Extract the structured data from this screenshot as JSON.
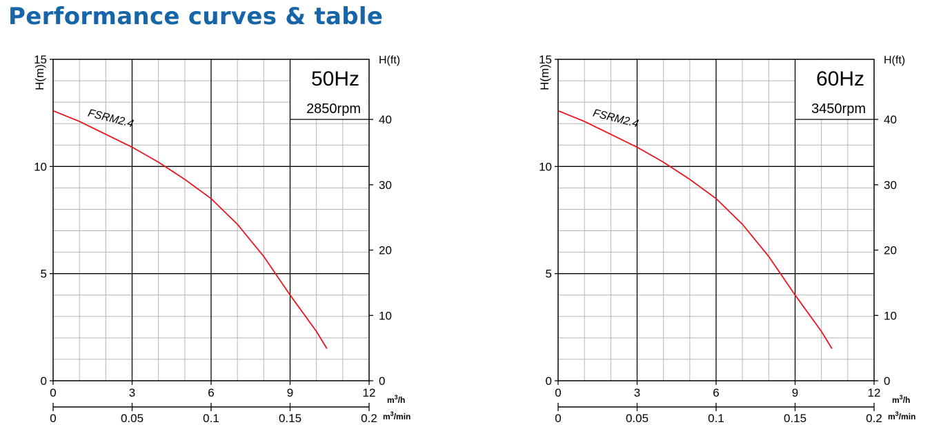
{
  "page": {
    "title": "Performance curves & table"
  },
  "colors": {
    "title": "#1565a8",
    "curve": "#e8141c",
    "frequency_label": "#1a73c8",
    "grid_major": "#000000",
    "grid_minor": "#b5b5b5"
  },
  "chart_data": [
    {
      "type": "line",
      "frequency": "50Hz",
      "speed": "2850rpm",
      "ylabel": "H(m)",
      "ylabel_right": "H(ft)",
      "xlabel_primary": "m3/h",
      "xlabel_secondary": "m3/min",
      "xlim": [
        0,
        12
      ],
      "ylim": [
        0,
        15
      ],
      "ylim_right": [
        0,
        49.2
      ],
      "x_ticks": [
        "0",
        "3",
        "6",
        "9",
        "12"
      ],
      "y_ticks": [
        "0",
        "5",
        "10",
        "15"
      ],
      "y_right_ticks": [
        "0",
        "10",
        "20",
        "30",
        "40"
      ],
      "x_secondary_ticks": [
        "0",
        "0.05",
        "0.1",
        "0.15",
        "0.2"
      ],
      "grid": true,
      "series": [
        {
          "name": "FSRM2.4",
          "x": [
            0,
            1,
            2,
            3,
            4,
            5,
            6,
            7,
            8,
            9,
            10,
            10.4
          ],
          "y": [
            12.6,
            12.1,
            11.5,
            10.9,
            10.2,
            9.4,
            8.5,
            7.3,
            5.8,
            4.0,
            2.3,
            1.5
          ]
        }
      ]
    },
    {
      "type": "line",
      "frequency": "60Hz",
      "speed": "3450rpm",
      "ylabel": "H(m)",
      "ylabel_right": "H(ft)",
      "xlabel_primary": "m3/h",
      "xlabel_secondary": "m3/min",
      "xlim": [
        0,
        12
      ],
      "ylim": [
        0,
        15
      ],
      "ylim_right": [
        0,
        49.2
      ],
      "x_ticks": [
        "0",
        "3",
        "6",
        "9",
        "12"
      ],
      "y_ticks": [
        "0",
        "5",
        "10",
        "15"
      ],
      "y_right_ticks": [
        "0",
        "10",
        "20",
        "30",
        "40"
      ],
      "x_secondary_ticks": [
        "0",
        "0.05",
        "0.1",
        "0.15",
        "0.2"
      ],
      "grid": true,
      "series": [
        {
          "name": "FSRM2.4",
          "x": [
            0,
            1,
            2,
            3,
            4,
            5,
            6,
            7,
            8,
            9,
            10,
            10.4
          ],
          "y": [
            12.6,
            12.1,
            11.5,
            10.9,
            10.2,
            9.4,
            8.5,
            7.3,
            5.8,
            4.0,
            2.3,
            1.5
          ]
        }
      ]
    }
  ]
}
